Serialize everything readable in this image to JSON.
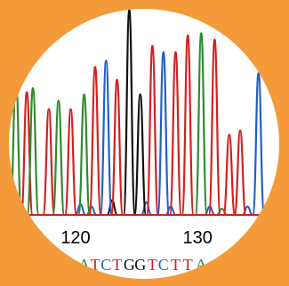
{
  "colors": {
    "frame": "#f59a3a",
    "background": "#ffffff",
    "A": "#2e8b2e",
    "C": "#2060c8",
    "G": "#111111",
    "T": "#d42020",
    "tick_label": "#000000"
  },
  "chart_data": {
    "type": "line",
    "title": "",
    "xlabel": "",
    "ylabel": "",
    "grid": false,
    "legend": "none",
    "x_axis": {
      "ticks": [
        {
          "position": 120,
          "label": "120"
        },
        {
          "position": 130,
          "label": "130"
        }
      ]
    },
    "xlim": [
      113.8,
      137.5
    ],
    "ylim": [
      0,
      100
    ],
    "peaks": [
      {
        "base": "G",
        "x": 114.2,
        "height": 38
      },
      {
        "base": "A",
        "x": 115.1,
        "height": 66
      },
      {
        "base": "T",
        "x": 116.0,
        "height": 58
      },
      {
        "base": "A",
        "x": 116.5,
        "height": 60
      },
      {
        "base": "T",
        "x": 117.8,
        "height": 50
      },
      {
        "base": "A",
        "x": 118.6,
        "height": 54
      },
      {
        "base": "T",
        "x": 119.6,
        "height": 50
      },
      {
        "base": "A",
        "x": 120.7,
        "height": 57
      },
      {
        "base": "T",
        "x": 121.6,
        "height": 70
      },
      {
        "base": "C",
        "x": 122.5,
        "height": 73
      },
      {
        "base": "T",
        "x": 123.4,
        "height": 64
      },
      {
        "base": "G",
        "x": 124.4,
        "height": 97
      },
      {
        "base": "G",
        "x": 125.3,
        "height": 57
      },
      {
        "base": "T",
        "x": 126.3,
        "height": 80
      },
      {
        "base": "C",
        "x": 127.2,
        "height": 77
      },
      {
        "base": "T",
        "x": 128.2,
        "height": 77
      },
      {
        "base": "T",
        "x": 129.2,
        "height": 85
      },
      {
        "base": "A",
        "x": 130.3,
        "height": 86
      },
      {
        "base": "T",
        "x": 131.4,
        "height": 83
      },
      {
        "base": "T",
        "x": 132.6,
        "height": 38
      },
      {
        "base": "T",
        "x": 133.5,
        "height": 40
      },
      {
        "base": "C",
        "x": 135.0,
        "height": 67
      }
    ],
    "baseline_bumps": [
      {
        "base": "C",
        "x": 120.4,
        "height": 5
      },
      {
        "base": "C",
        "x": 121.3,
        "height": 4
      },
      {
        "base": "G",
        "x": 123.0,
        "height": 7
      },
      {
        "base": "C",
        "x": 125.8,
        "height": 6
      },
      {
        "base": "C",
        "x": 127.8,
        "height": 4
      },
      {
        "base": "C",
        "x": 131.0,
        "height": 4
      },
      {
        "base": "A",
        "x": 132.0,
        "height": 3
      },
      {
        "base": "C",
        "x": 134.1,
        "height": 4
      }
    ],
    "base_calls": [
      {
        "letter": "A",
        "x": 120.7
      },
      {
        "letter": "T",
        "x": 121.6
      },
      {
        "letter": "C",
        "x": 122.5
      },
      {
        "letter": "T",
        "x": 123.4
      },
      {
        "letter": "G",
        "x": 124.4
      },
      {
        "letter": "G",
        "x": 125.3
      },
      {
        "letter": "T",
        "x": 126.3
      },
      {
        "letter": "C",
        "x": 127.2
      },
      {
        "letter": "T",
        "x": 128.2
      },
      {
        "letter": "T",
        "x": 129.2
      },
      {
        "letter": "A",
        "x": 130.3
      }
    ]
  }
}
